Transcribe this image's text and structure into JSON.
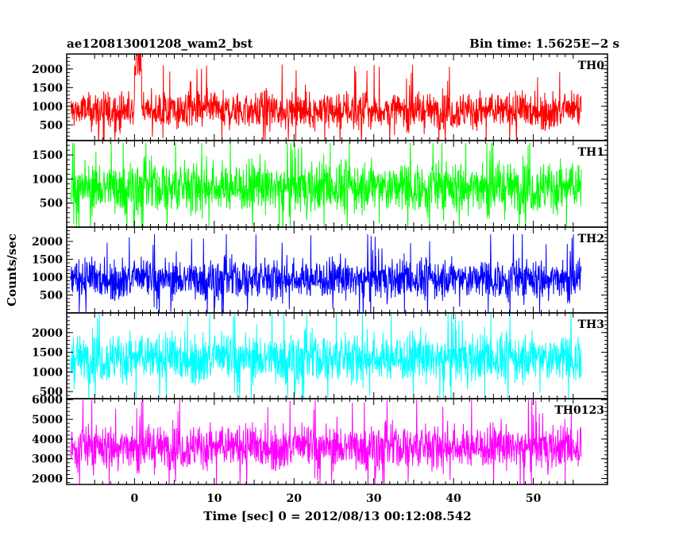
{
  "chart_data": {
    "type": "line",
    "title": "ae120813001208_wam2_bst",
    "subtitle": "Bin time: 1.5625E−2 s",
    "xlabel": "Time [sec] 0 = 2012/08/13 00:12:08.542",
    "ylabel": "Counts/sec",
    "x_ticks": [
      "0",
      "10",
      "20",
      "30",
      "40",
      "50"
    ],
    "xlim": [
      -8.5,
      59.3
    ],
    "x_data_range": [
      -8.0,
      56.0
    ],
    "grid": false,
    "panels": [
      {
        "name": "TH0",
        "color": "#ff0000",
        "ylim": [
          80,
          2400
        ],
        "y_ticks": [
          "500",
          "1000",
          "1500",
          "2000"
        ],
        "approx_level": 880,
        "approx_low": 300,
        "approx_high": 1450,
        "approx_peak": 2400
      },
      {
        "name": "TH1",
        "color": "#00ff00",
        "ylim": [
          0,
          1800
        ],
        "y_ticks": [
          "500",
          "1000",
          "1500"
        ],
        "approx_level": 830,
        "approx_low": 150,
        "approx_high": 1400,
        "approx_peak": 1750
      },
      {
        "name": "TH2",
        "color": "#0000ff",
        "ylim": [
          0,
          2400
        ],
        "y_ticks": [
          "500",
          "1000",
          "1500",
          "2000"
        ],
        "approx_level": 950,
        "approx_low": 300,
        "approx_high": 1600,
        "approx_peak": 2200
      },
      {
        "name": "TH3",
        "color": "#00ffff",
        "ylim": [
          320,
          2500
        ],
        "y_ticks": [
          "500",
          "1000",
          "1500",
          "2000"
        ],
        "approx_level": 1350,
        "approx_low": 600,
        "approx_high": 2050,
        "approx_peak": 2500
      },
      {
        "name": "TH0123",
        "color": "#ff00ff",
        "ylim": [
          1700,
          6050
        ],
        "y_ticks": [
          "2000",
          "3000",
          "4000",
          "5000",
          "6000"
        ],
        "approx_level": 3600,
        "approx_low": 2300,
        "approx_high": 4900,
        "approx_peak": 6000
      }
    ]
  }
}
